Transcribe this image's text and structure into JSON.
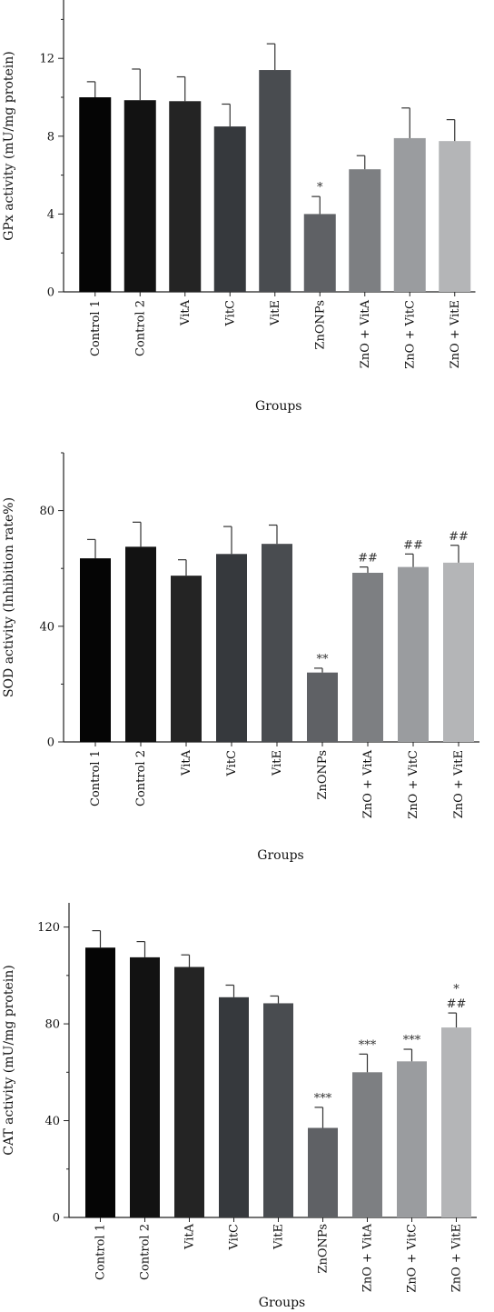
{
  "colors": [
    "#050505",
    "#121212",
    "#242424",
    "#36393d",
    "#494c50",
    "#5f6165",
    "#7d7f82",
    "#9a9c9f",
    "#b4b5b7"
  ],
  "chart_data": [
    {
      "type": "bar",
      "categories": [
        "Control 1",
        "Control 2",
        "VitA",
        "VitC",
        "VitE",
        "ZnONPs",
        "ZnO + VitA",
        "ZnO + VitC",
        "ZnO + VitE"
      ],
      "values": [
        10.0,
        9.85,
        9.8,
        8.5,
        11.4,
        4.0,
        6.3,
        7.9,
        7.75
      ],
      "errors": [
        0.8,
        1.6,
        1.25,
        1.15,
        1.35,
        0.9,
        0.7,
        1.55,
        1.1
      ],
      "annotations": [
        [],
        [],
        [],
        [],
        [],
        [
          "*"
        ],
        [],
        [],
        []
      ],
      "ylabel": "GPx activity (mU/mg protein)",
      "xlabel": "Groups",
      "yticks": [
        0,
        4,
        8,
        12
      ],
      "ylim": [
        0,
        15
      ]
    },
    {
      "type": "bar",
      "categories": [
        "Control 1",
        "Control 2",
        "VitA",
        "VitC",
        "VitE",
        "ZnONPs",
        "ZnO + VitA",
        "ZnO + VitC",
        "ZnO + VitE"
      ],
      "values": [
        63.5,
        67.5,
        57.5,
        65,
        68.5,
        24,
        58.5,
        60.5,
        62
      ],
      "errors": [
        6.5,
        8.5,
        5.5,
        9.5,
        6.5,
        1.5,
        2.0,
        4.5,
        6.0
      ],
      "annotations": [
        [],
        [],
        [],
        [],
        [],
        [
          "**"
        ],
        [
          "##"
        ],
        [
          "##"
        ],
        [
          "##"
        ]
      ],
      "ylabel": "SOD activity (Inhibition rate%)",
      "xlabel": "Groups",
      "yticks": [
        0,
        40,
        80
      ],
      "ylim": [
        0,
        100
      ]
    },
    {
      "type": "bar",
      "categories": [
        "Control 1",
        "Control 2",
        "VitA",
        "VitC",
        "VitE",
        "ZnONPs",
        "ZnO + VitA",
        "ZnO + VitC",
        "ZnO + VitE"
      ],
      "values": [
        111.5,
        107.5,
        103.5,
        91,
        88.5,
        37,
        60,
        64.5,
        78.5
      ],
      "errors": [
        7,
        6.5,
        5,
        5,
        3,
        8.5,
        7.5,
        5,
        6
      ],
      "annotations": [
        [],
        [],
        [],
        [],
        [],
        [
          "***"
        ],
        [
          "***"
        ],
        [
          "***"
        ],
        [
          "*",
          "##"
        ]
      ],
      "ylabel": "CAT activity (mU/mg protein)",
      "xlabel": "Groups",
      "yticks": [
        0,
        40,
        80,
        120
      ],
      "ylim": [
        0,
        130
      ]
    }
  ]
}
